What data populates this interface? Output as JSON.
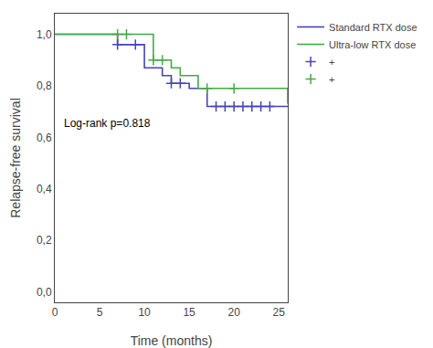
{
  "chart_data": {
    "type": "step",
    "xlabel": "Time (months)",
    "ylabel": "Relapse-free survival",
    "annotation": "Log-rank p=0.818",
    "xlim": [
      0,
      26
    ],
    "ylim": [
      -0.04,
      1.08
    ],
    "xticks": [
      0,
      5,
      10,
      15,
      20,
      25
    ],
    "yticks": [
      {
        "value": 0.0,
        "label": "0,0"
      },
      {
        "value": 0.2,
        "label": "0,2"
      },
      {
        "value": 0.4,
        "label": "0,4"
      },
      {
        "value": 0.6,
        "label": "0,6"
      },
      {
        "value": 0.8,
        "label": "0,8"
      },
      {
        "value": 1.0,
        "label": "1,0"
      }
    ],
    "grid": false,
    "legend": "right",
    "series": [
      {
        "name": "Standard RTX dose",
        "type": "step",
        "color": "#4444bb",
        "line_style": "solid",
        "x": [
          0,
          7,
          9,
          10,
          12,
          13,
          15,
          17,
          24,
          26
        ],
        "values": [
          1.0,
          0.96,
          0.96,
          0.87,
          0.84,
          0.81,
          0.79,
          0.72,
          0.72,
          0.72
        ]
      },
      {
        "name": "Ultra-low RTX dose",
        "type": "step",
        "color": "#44aa44",
        "line_style": "solid",
        "x": [
          0,
          7,
          11,
          13,
          14,
          16,
          17,
          24,
          26
        ],
        "values": [
          1.0,
          1.0,
          0.9,
          0.87,
          0.84,
          0.79,
          0.79,
          0.79,
          0.73
        ]
      },
      {
        "name": "+",
        "type": "scatter",
        "color": "#4444bb",
        "marker": "cross",
        "x": [
          7,
          9,
          13,
          14,
          18,
          19,
          20,
          21,
          22,
          23,
          24
        ],
        "values": [
          0.96,
          0.96,
          0.81,
          0.81,
          0.72,
          0.72,
          0.72,
          0.72,
          0.72,
          0.72,
          0.72
        ]
      },
      {
        "name": "+",
        "type": "scatter",
        "color": "#44aa44",
        "marker": "cross",
        "x": [
          7,
          8,
          11,
          12,
          17,
          20
        ],
        "values": [
          1.0,
          1.0,
          0.9,
          0.9,
          0.79,
          0.79
        ]
      }
    ]
  }
}
